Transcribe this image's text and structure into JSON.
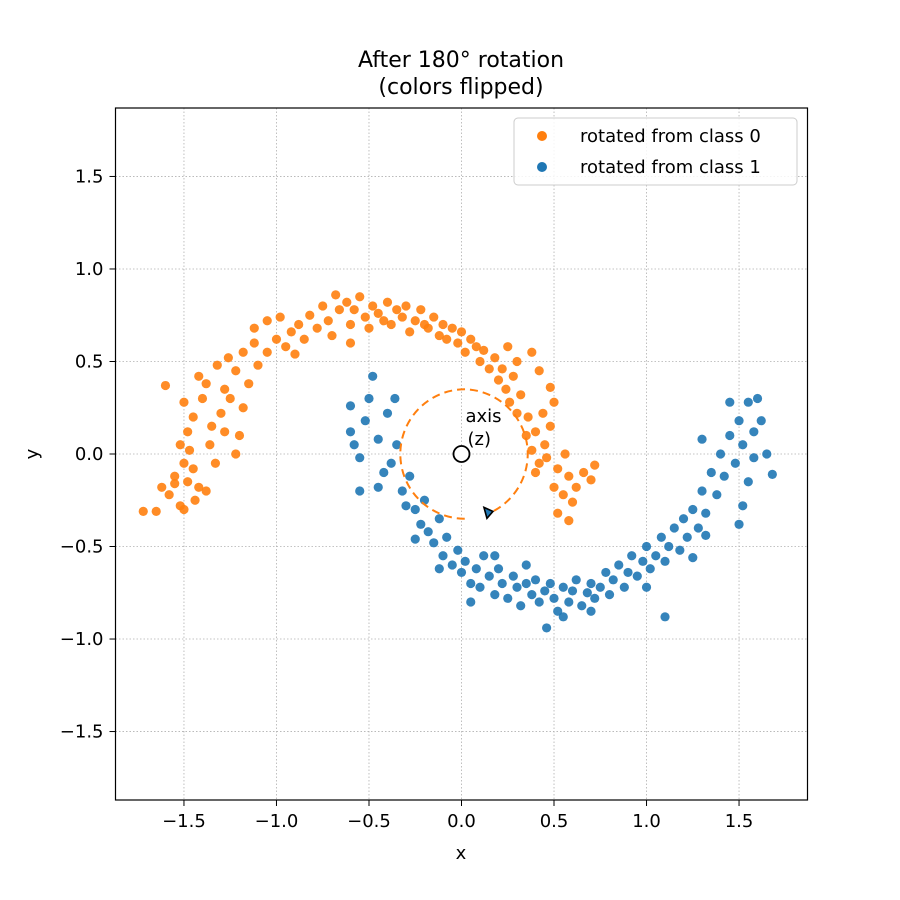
{
  "chart_data": {
    "type": "scatter",
    "title": "After 180° rotation",
    "subtitle": "(colors flipped)",
    "xlabel": "x",
    "ylabel": "y",
    "xlim": [
      -1.87,
      1.87
    ],
    "ylim": [
      -1.87,
      1.87
    ],
    "xticks": [
      -1.5,
      -1.0,
      -0.5,
      0.0,
      0.5,
      1.0,
      1.5
    ],
    "yticks": [
      -1.5,
      -1.0,
      -0.5,
      0.0,
      0.5,
      1.0,
      1.5
    ],
    "xtick_labels": [
      "−1.5",
      "−1.0",
      "−0.5",
      "0.0",
      "0.5",
      "1.0",
      "1.5"
    ],
    "ytick_labels": [
      "−1.5",
      "−1.0",
      "−0.5",
      "0.0",
      "0.5",
      "1.0",
      "1.5"
    ],
    "grid": true,
    "legend_position": "top-right",
    "series": [
      {
        "name": "rotated from class 0",
        "color": "#ff7f0e",
        "points": [
          [
            -1.72,
            -0.31
          ],
          [
            -1.65,
            -0.31
          ],
          [
            -1.62,
            -0.18
          ],
          [
            -1.58,
            -0.22
          ],
          [
            -1.6,
            0.37
          ],
          [
            -1.55,
            -0.16
          ],
          [
            -1.52,
            -0.28
          ],
          [
            -1.5,
            -0.3
          ],
          [
            -1.48,
            -0.15
          ],
          [
            -1.5,
            -0.05
          ],
          [
            -1.47,
            0.02
          ],
          [
            -1.48,
            0.12
          ],
          [
            -1.52,
            0.05
          ],
          [
            -1.45,
            -0.08
          ],
          [
            -1.42,
            -0.18
          ],
          [
            -1.45,
            0.2
          ],
          [
            -1.5,
            0.28
          ],
          [
            -1.4,
            0.3
          ],
          [
            -1.42,
            0.42
          ],
          [
            -1.38,
            0.38
          ],
          [
            -1.35,
            0.15
          ],
          [
            -1.36,
            0.05
          ],
          [
            -1.33,
            -0.05
          ],
          [
            -1.38,
            -0.2
          ],
          [
            -1.3,
            0.22
          ],
          [
            -1.28,
            0.35
          ],
          [
            -1.32,
            0.48
          ],
          [
            -1.26,
            0.52
          ],
          [
            -1.22,
            0.45
          ],
          [
            -1.25,
            0.3
          ],
          [
            -1.2,
            0.1
          ],
          [
            -1.22,
            0.0
          ],
          [
            -1.18,
            0.25
          ],
          [
            -1.15,
            0.38
          ],
          [
            -1.18,
            0.55
          ],
          [
            -1.12,
            0.6
          ],
          [
            -1.1,
            0.48
          ],
          [
            -1.12,
            0.68
          ],
          [
            -1.05,
            0.72
          ],
          [
            -1.0,
            0.62
          ],
          [
            -0.98,
            0.74
          ],
          [
            -0.95,
            0.58
          ],
          [
            -0.92,
            0.66
          ],
          [
            -0.88,
            0.7
          ],
          [
            -0.85,
            0.62
          ],
          [
            -0.82,
            0.75
          ],
          [
            -0.78,
            0.68
          ],
          [
            -0.75,
            0.8
          ],
          [
            -0.72,
            0.72
          ],
          [
            -0.7,
            0.64
          ],
          [
            -0.68,
            0.86
          ],
          [
            -0.66,
            0.78
          ],
          [
            -0.62,
            0.82
          ],
          [
            -0.6,
            0.7
          ],
          [
            -0.58,
            0.78
          ],
          [
            -0.55,
            0.85
          ],
          [
            -0.52,
            0.74
          ],
          [
            -0.5,
            0.68
          ],
          [
            -0.48,
            0.8
          ],
          [
            -0.45,
            0.76
          ],
          [
            -0.42,
            0.72
          ],
          [
            -0.4,
            0.82
          ],
          [
            -0.38,
            0.7
          ],
          [
            -0.35,
            0.78
          ],
          [
            -0.32,
            0.74
          ],
          [
            -0.3,
            0.8
          ],
          [
            -0.28,
            0.66
          ],
          [
            -0.25,
            0.72
          ],
          [
            -0.22,
            0.78
          ],
          [
            -0.2,
            0.7
          ],
          [
            -0.18,
            0.68
          ],
          [
            -0.15,
            0.74
          ],
          [
            -0.12,
            0.64
          ],
          [
            -0.1,
            0.7
          ],
          [
            -0.08,
            0.62
          ],
          [
            -0.05,
            0.68
          ],
          [
            -0.02,
            0.6
          ],
          [
            0.0,
            0.66
          ],
          [
            0.02,
            0.55
          ],
          [
            0.05,
            0.62
          ],
          [
            0.08,
            0.58
          ],
          [
            0.1,
            0.5
          ],
          [
            0.12,
            0.56
          ],
          [
            0.15,
            0.46
          ],
          [
            0.18,
            0.52
          ],
          [
            0.2,
            0.4
          ],
          [
            0.22,
            0.46
          ],
          [
            0.24,
            0.35
          ],
          [
            0.26,
            0.28
          ],
          [
            0.28,
            0.42
          ],
          [
            0.3,
            0.22
          ],
          [
            0.32,
            0.32
          ],
          [
            0.35,
            0.1
          ],
          [
            0.36,
            0.2
          ],
          [
            0.38,
            0.02
          ],
          [
            0.4,
            0.12
          ],
          [
            0.42,
            -0.05
          ],
          [
            0.4,
            -0.1
          ],
          [
            0.45,
            0.05
          ],
          [
            0.46,
            -0.02
          ],
          [
            0.48,
            0.15
          ],
          [
            0.44,
            0.22
          ],
          [
            0.5,
            0.28
          ],
          [
            0.48,
            0.36
          ],
          [
            0.42,
            0.45
          ],
          [
            0.38,
            0.55
          ],
          [
            0.52,
            -0.08
          ],
          [
            0.5,
            -0.18
          ],
          [
            0.55,
            -0.22
          ],
          [
            0.56,
            0.0
          ],
          [
            0.58,
            -0.12
          ],
          [
            0.6,
            -0.26
          ],
          [
            0.62,
            -0.18
          ],
          [
            0.66,
            -0.1
          ],
          [
            0.7,
            -0.14
          ],
          [
            0.72,
            -0.06
          ],
          [
            0.52,
            -0.32
          ],
          [
            0.58,
            -0.36
          ],
          [
            0.25,
            0.58
          ],
          [
            0.3,
            0.5
          ],
          [
            -0.9,
            0.54
          ],
          [
            -1.05,
            0.55
          ],
          [
            -1.28,
            0.12
          ],
          [
            -1.44,
            -0.25
          ],
          [
            -1.55,
            -0.12
          ],
          [
            -0.6,
            0.6
          ]
        ]
      },
      {
        "name": "rotated from class 1",
        "color": "#1f77b4",
        "points": [
          [
            -0.6,
            0.12
          ],
          [
            -0.58,
            0.05
          ],
          [
            -0.55,
            -0.02
          ],
          [
            -0.52,
            0.18
          ],
          [
            -0.5,
            0.3
          ],
          [
            -0.48,
            0.42
          ],
          [
            -0.45,
            0.08
          ],
          [
            -0.42,
            -0.1
          ],
          [
            -0.4,
            0.22
          ],
          [
            -0.45,
            -0.18
          ],
          [
            -0.38,
            -0.05
          ],
          [
            -0.35,
            0.05
          ],
          [
            -0.32,
            -0.2
          ],
          [
            -0.3,
            -0.28
          ],
          [
            -0.28,
            -0.12
          ],
          [
            -0.25,
            -0.3
          ],
          [
            -0.22,
            -0.38
          ],
          [
            -0.2,
            -0.25
          ],
          [
            -0.18,
            -0.42
          ],
          [
            -0.15,
            -0.48
          ],
          [
            -0.12,
            -0.35
          ],
          [
            -0.1,
            -0.55
          ],
          [
            -0.08,
            -0.45
          ],
          [
            -0.05,
            -0.6
          ],
          [
            -0.02,
            -0.52
          ],
          [
            0.0,
            -0.64
          ],
          [
            0.02,
            -0.58
          ],
          [
            0.05,
            -0.7
          ],
          [
            0.08,
            -0.62
          ],
          [
            0.1,
            -0.72
          ],
          [
            0.12,
            -0.55
          ],
          [
            0.15,
            -0.66
          ],
          [
            0.18,
            -0.76
          ],
          [
            0.2,
            -0.62
          ],
          [
            0.22,
            -0.7
          ],
          [
            0.25,
            -0.78
          ],
          [
            0.28,
            -0.66
          ],
          [
            0.3,
            -0.72
          ],
          [
            0.32,
            -0.82
          ],
          [
            0.35,
            -0.7
          ],
          [
            0.38,
            -0.76
          ],
          [
            0.4,
            -0.68
          ],
          [
            0.42,
            -0.8
          ],
          [
            0.45,
            -0.74
          ],
          [
            0.46,
            -0.94
          ],
          [
            0.48,
            -0.7
          ],
          [
            0.5,
            -0.78
          ],
          [
            0.52,
            -0.85
          ],
          [
            0.55,
            -0.72
          ],
          [
            0.58,
            -0.8
          ],
          [
            0.6,
            -0.74
          ],
          [
            0.62,
            -0.68
          ],
          [
            0.65,
            -0.82
          ],
          [
            0.68,
            -0.75
          ],
          [
            0.7,
            -0.7
          ],
          [
            0.72,
            -0.78
          ],
          [
            0.75,
            -0.72
          ],
          [
            0.78,
            -0.64
          ],
          [
            0.8,
            -0.76
          ],
          [
            0.82,
            -0.68
          ],
          [
            0.85,
            -0.6
          ],
          [
            0.88,
            -0.72
          ],
          [
            0.9,
            -0.64
          ],
          [
            0.92,
            -0.55
          ],
          [
            0.95,
            -0.66
          ],
          [
            0.98,
            -0.58
          ],
          [
            1.0,
            -0.5
          ],
          [
            1.02,
            -0.62
          ],
          [
            1.05,
            -0.55
          ],
          [
            1.08,
            -0.45
          ],
          [
            1.1,
            -0.58
          ],
          [
            1.12,
            -0.5
          ],
          [
            1.15,
            -0.4
          ],
          [
            1.18,
            -0.52
          ],
          [
            1.2,
            -0.35
          ],
          [
            1.22,
            -0.45
          ],
          [
            1.25,
            -0.3
          ],
          [
            1.28,
            -0.4
          ],
          [
            1.3,
            -0.2
          ],
          [
            1.32,
            -0.32
          ],
          [
            1.35,
            -0.1
          ],
          [
            1.38,
            -0.22
          ],
          [
            1.4,
            0.0
          ],
          [
            1.42,
            -0.12
          ],
          [
            1.45,
            0.1
          ],
          [
            1.48,
            -0.05
          ],
          [
            1.5,
            0.18
          ],
          [
            1.52,
            0.05
          ],
          [
            1.55,
            0.28
          ],
          [
            1.58,
            0.12
          ],
          [
            1.6,
            0.3
          ],
          [
            1.62,
            0.18
          ],
          [
            1.58,
            -0.02
          ],
          [
            1.55,
            -0.15
          ],
          [
            1.52,
            -0.28
          ],
          [
            1.5,
            -0.38
          ],
          [
            1.65,
            0.0
          ],
          [
            1.68,
            -0.11
          ],
          [
            1.3,
            0.08
          ],
          [
            1.32,
            -0.44
          ],
          [
            1.1,
            -0.88
          ],
          [
            0.55,
            -0.88
          ],
          [
            -0.12,
            -0.62
          ],
          [
            0.18,
            -0.55
          ],
          [
            -0.55,
            -0.2
          ],
          [
            -0.6,
            0.26
          ],
          [
            -0.36,
            0.3
          ],
          [
            0.05,
            -0.8
          ],
          [
            0.7,
            -0.85
          ],
          [
            1.0,
            -0.72
          ],
          [
            1.25,
            -0.56
          ],
          [
            1.45,
            0.28
          ],
          [
            -0.25,
            -0.46
          ],
          [
            0.35,
            -0.6
          ]
        ]
      }
    ],
    "annotations": {
      "axis_label_line1": "axis",
      "axis_label_line2": "(z)",
      "center": [
        0.0,
        0.0
      ],
      "rotation_arc_radius": 0.35,
      "arrow_end": [
        0.17,
        -0.31
      ]
    },
    "colors": {
      "class0": "#ff7f0e",
      "class1": "#1f77b4",
      "grid": "#b0b0b0",
      "axis": "#000000"
    }
  }
}
